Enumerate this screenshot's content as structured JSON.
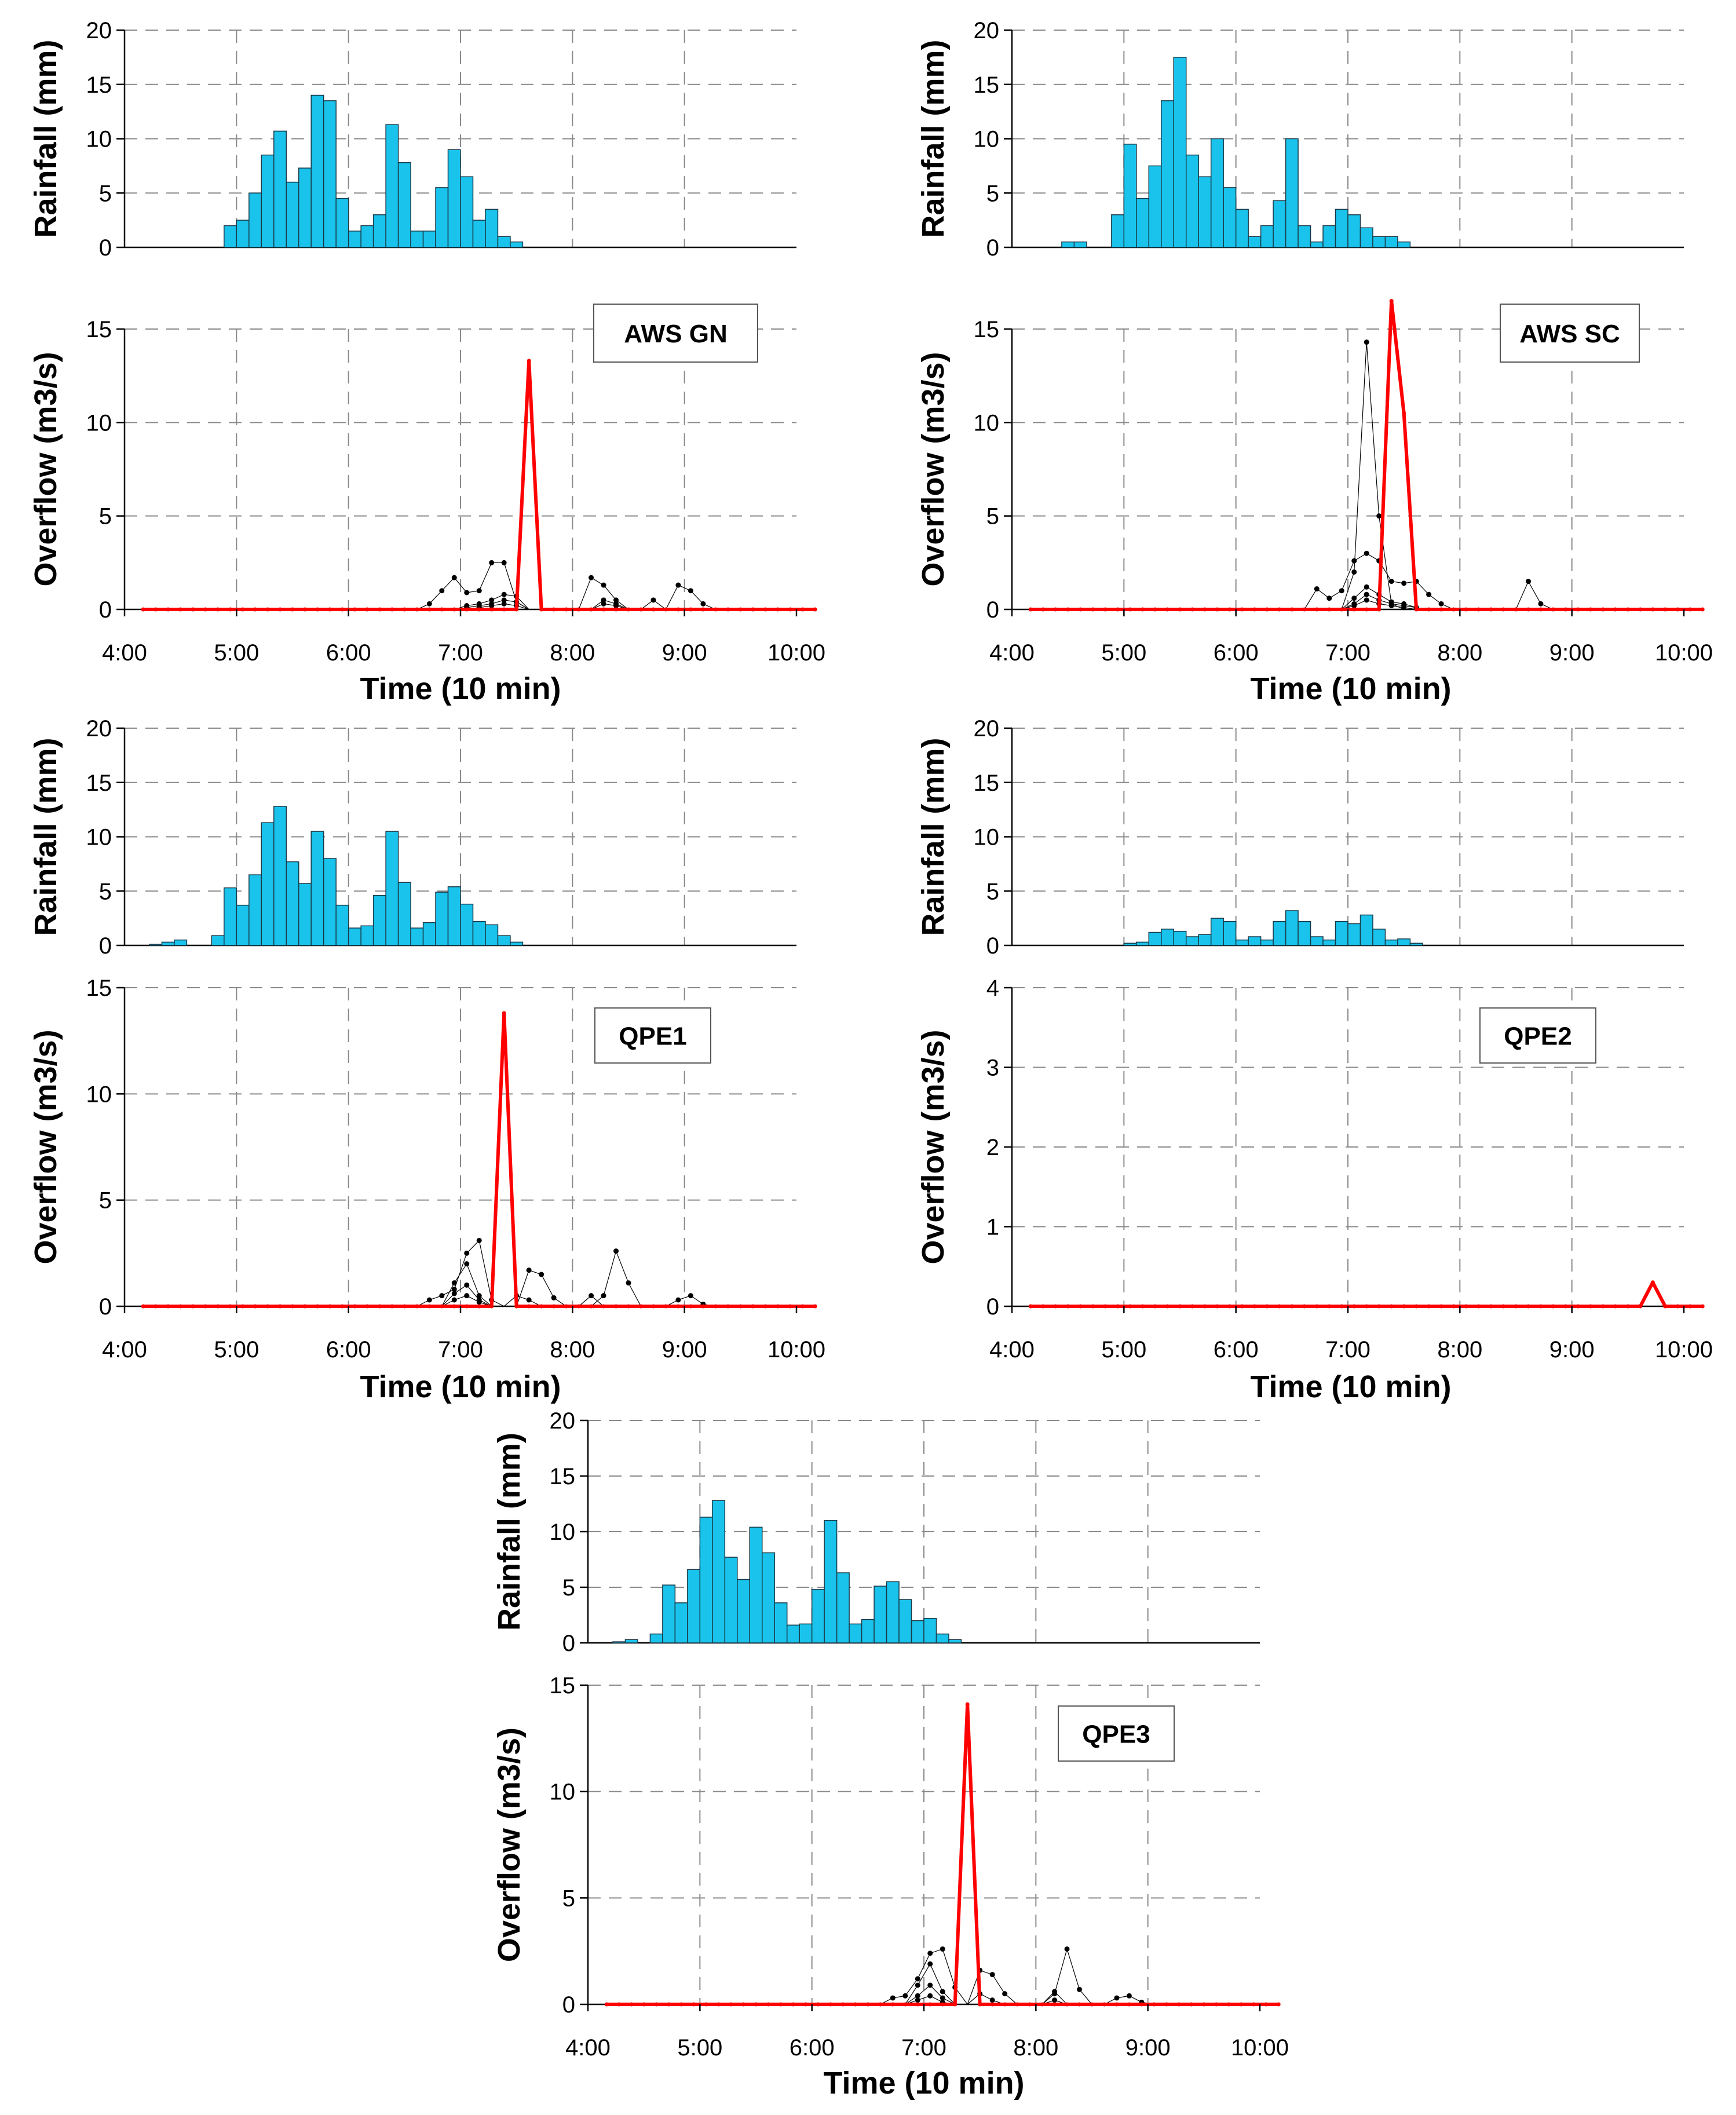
{
  "chart_data": [
    {
      "type": "bar+line",
      "label": "AWS GN",
      "x_ticks": [
        "4:00",
        "5:00",
        "6:00",
        "7:00",
        "8:00",
        "9:00",
        "10:00"
      ],
      "xlabel": "Time (10 min)",
      "rainfall": {
        "ylabel": "Rainfall (mm)",
        "ylim": [
          0,
          20
        ],
        "yticks": [
          "0",
          "5",
          "10",
          "15",
          "20"
        ],
        "start_step": 9,
        "values": [
          2,
          2.5,
          5,
          8.5,
          10.7,
          6,
          7.3,
          14,
          13.5,
          4.5,
          1.5,
          2,
          3,
          11.3,
          7.8,
          1.5,
          1.5,
          5.5,
          9,
          6.5,
          2.5,
          3.5,
          1,
          0.5
        ]
      },
      "overflow": {
        "ylabel": "Overflow (m3/s)",
        "ylim": [
          0,
          15
        ],
        "yticks": [
          "0",
          "5",
          "10",
          "15"
        ],
        "main": {
          "start_step": 0,
          "values": [
            0,
            0,
            0,
            0,
            0,
            0,
            0,
            0,
            0,
            0,
            0,
            0,
            0,
            0,
            0,
            0,
            0,
            0,
            0,
            0,
            0,
            0,
            0,
            0,
            0,
            0,
            0,
            0,
            0,
            0,
            0,
            13.3,
            0,
            0,
            0,
            0,
            0,
            0,
            0,
            0,
            0,
            0,
            0,
            0,
            0,
            0,
            0,
            0,
            0,
            0,
            0,
            0,
            0,
            0,
            0
          ]
        },
        "ensemble": [
          {
            "start_step": 24,
            "values": [
              0,
              0.3,
              1,
              1.7,
              0.9,
              1,
              2.5,
              2.5,
              0.4,
              0,
              0,
              0,
              0,
              0,
              1.7,
              1.3,
              0.5,
              0,
              0,
              0.5,
              0,
              1.3,
              1,
              0.3,
              0
            ]
          },
          {
            "start_step": 27,
            "values": [
              0,
              0.2,
              0.3,
              0.5,
              0.8,
              0.7,
              0,
              0,
              0,
              0,
              0,
              0,
              0.5,
              0.3,
              0
            ]
          },
          {
            "start_step": 27,
            "values": [
              0,
              0.1,
              0.2,
              0.3,
              0.5,
              0.4,
              0,
              0,
              0,
              0,
              0,
              0,
              0.3,
              0.2,
              0
            ]
          },
          {
            "start_step": 27,
            "values": [
              0,
              0,
              0.1,
              0.2,
              0.3,
              0.2,
              0,
              0,
              0,
              0,
              0,
              0,
              0,
              0,
              0
            ]
          }
        ]
      }
    },
    {
      "type": "bar+line",
      "label": "AWS SC",
      "x_ticks": [
        "4:00",
        "5:00",
        "6:00",
        "7:00",
        "8:00",
        "9:00",
        "10:00"
      ],
      "xlabel": "Time (10 min)",
      "rainfall": {
        "ylabel": "Rainfall (mm)",
        "ylim": [
          0,
          20
        ],
        "yticks": [
          "0",
          "5",
          "10",
          "15",
          "20"
        ],
        "start_step": 5,
        "values": [
          0.5,
          0.5,
          0,
          0,
          3,
          9.5,
          4.5,
          7.5,
          13.5,
          17.5,
          8.5,
          6.5,
          10,
          5.5,
          3.5,
          1,
          2,
          4.3,
          10,
          2,
          0.5,
          2,
          3.5,
          3,
          1.8,
          1,
          1,
          0.5
        ]
      },
      "overflow": {
        "ylabel": "Overflow (m3/s)",
        "ylim": [
          0,
          15
        ],
        "yticks": [
          "0",
          "5",
          "10",
          "15"
        ],
        "main": {
          "start_step": 0,
          "values": [
            0,
            0,
            0,
            0,
            0,
            0,
            0,
            0,
            0,
            0,
            0,
            0,
            0,
            0,
            0,
            0,
            0,
            0,
            0,
            0,
            0,
            0,
            0,
            0,
            0,
            0,
            0,
            0,
            0,
            16.5,
            10.5,
            0,
            0,
            0,
            0,
            0,
            0,
            0,
            0,
            0,
            0,
            0,
            0,
            0,
            0,
            0,
            0,
            0,
            0,
            0,
            0,
            0,
            0,
            0,
            0
          ]
        },
        "ensemble": [
          {
            "start_step": 23,
            "values": [
              0,
              0,
              1.1,
              0.6,
              1,
              2.6,
              3,
              2.6,
              1.5,
              1.4,
              1.5,
              0.8,
              0.3,
              0,
              0,
              0,
              0,
              0,
              0,
              1.5,
              0.3,
              0
            ]
          },
          {
            "start_step": 27,
            "values": [
              0,
              2,
              14.3,
              5,
              0.3,
              0
            ]
          },
          {
            "start_step": 27,
            "values": [
              0,
              0.6,
              1.2,
              0.8,
              0.4,
              0.3,
              0.1
            ]
          },
          {
            "start_step": 27,
            "values": [
              0,
              0.3,
              0.8,
              0.5,
              0.3,
              0.2,
              0.1
            ]
          },
          {
            "start_step": 27,
            "values": [
              0,
              0.2,
              0.5,
              0.3,
              0.2,
              0.1,
              0
            ]
          }
        ]
      }
    },
    {
      "type": "bar+line",
      "label": "QPE1",
      "x_ticks": [
        "4:00",
        "5:00",
        "6:00",
        "7:00",
        "8:00",
        "9:00",
        "10:00"
      ],
      "xlabel": "Time (10 min)",
      "rainfall": {
        "ylabel": "Rainfall (mm)",
        "ylim": [
          0,
          20
        ],
        "yticks": [
          "0",
          "5",
          "10",
          "15",
          "20"
        ],
        "start_step": 3,
        "values": [
          0.1,
          0.3,
          0.5,
          0,
          0,
          0.9,
          5.3,
          3.7,
          6.5,
          11.3,
          12.8,
          7.7,
          5.7,
          10.5,
          8,
          3.7,
          1.6,
          1.8,
          4.6,
          10.5,
          5.8,
          1.6,
          2.1,
          4.9,
          5.4,
          3.8,
          2.2,
          1.9,
          0.9,
          0.3
        ]
      },
      "overflow": {
        "ylabel": "Overflow (m3/s)",
        "ylim": [
          0,
          15
        ],
        "yticks": [
          "0",
          "5",
          "10",
          "15"
        ],
        "main": {
          "start_step": 0,
          "values": [
            0,
            0,
            0,
            0,
            0,
            0,
            0,
            0,
            0,
            0,
            0,
            0,
            0,
            0,
            0,
            0,
            0,
            0,
            0,
            0,
            0,
            0,
            0,
            0,
            0,
            0,
            0,
            0,
            0,
            13.8,
            0,
            0,
            0,
            0,
            0,
            0,
            0,
            0,
            0,
            0,
            0,
            0,
            0,
            0,
            0,
            0,
            0,
            0,
            0,
            0,
            0,
            0,
            0,
            0,
            0
          ]
        },
        "ensemble": [
          {
            "start_step": 24,
            "values": [
              0,
              0.3,
              0.5,
              0.8,
              2.5,
              3.1,
              0.3,
              0,
              0,
              1.7,
              1.5,
              0.4,
              0,
              0,
              0,
              0.5,
              2.6,
              1.1,
              0,
              0,
              0,
              0.3,
              0.5,
              0.1,
              0
            ]
          },
          {
            "start_step": 26,
            "values": [
              0,
              1.1,
              2,
              0.5,
              0,
              0,
              0.5,
              0.3,
              0,
              0,
              0,
              0,
              0.5,
              0
            ]
          },
          {
            "start_step": 26,
            "values": [
              0,
              0.6,
              1,
              0.3,
              0,
              0,
              0,
              0,
              0,
              0,
              0,
              0,
              0,
              0
            ]
          },
          {
            "start_step": 26,
            "values": [
              0,
              0.3,
              0.5,
              0.2,
              0
            ]
          }
        ]
      }
    },
    {
      "type": "bar+line",
      "label": "QPE2",
      "x_ticks": [
        "4:00",
        "5:00",
        "6:00",
        "7:00",
        "8:00",
        "9:00",
        "10:00"
      ],
      "xlabel": "Time (10 min)",
      "rainfall": {
        "ylabel": "Rainfall (mm)",
        "ylim": [
          0,
          20
        ],
        "yticks": [
          "0",
          "5",
          "10",
          "15",
          "20"
        ],
        "start_step": 10,
        "values": [
          0.2,
          0.3,
          1.2,
          1.5,
          1.3,
          0.8,
          1,
          2.5,
          2.2,
          0.5,
          0.8,
          0.5,
          2.2,
          3.2,
          2.2,
          0.8,
          0.5,
          2.2,
          2,
          2.8,
          1.5,
          0.5,
          0.6,
          0.2
        ]
      },
      "overflow": {
        "ylabel": "Overflow (m3/s)",
        "ylim": [
          0,
          4
        ],
        "yticks": [
          "0",
          "1",
          "2",
          "3",
          "4"
        ],
        "main": {
          "start_step": 0,
          "values": [
            0,
            0,
            0,
            0,
            0,
            0,
            0,
            0,
            0,
            0,
            0,
            0,
            0,
            0,
            0,
            0,
            0,
            0,
            0,
            0,
            0,
            0,
            0,
            0,
            0,
            0,
            0,
            0,
            0,
            0,
            0,
            0,
            0,
            0,
            0,
            0,
            0,
            0,
            0,
            0,
            0,
            0,
            0,
            0,
            0,
            0,
            0,
            0,
            0,
            0,
            0.3,
            0,
            0,
            0,
            0
          ]
        },
        "ensemble": []
      }
    },
    {
      "type": "bar+line",
      "label": "QPE3",
      "x_ticks": [
        "4:00",
        "5:00",
        "6:00",
        "7:00",
        "8:00",
        "9:00",
        "10:00"
      ],
      "xlabel": "Time (10 min)",
      "rainfall": {
        "ylabel": "Rainfall (mm)",
        "ylim": [
          0,
          20
        ],
        "yticks": [
          "0",
          "5",
          "10",
          "15",
          "20"
        ],
        "start_step": 3,
        "values": [
          0.1,
          0.3,
          0,
          0.8,
          5.2,
          3.6,
          6.6,
          11.3,
          12.8,
          7.7,
          5.7,
          10.4,
          8.1,
          3.6,
          1.6,
          1.7,
          4.8,
          11,
          6.3,
          1.7,
          2.1,
          5.1,
          5.5,
          3.9,
          2,
          2.2,
          0.8,
          0.3
        ]
      },
      "overflow": {
        "ylabel": "Overflow (m3/s)",
        "ylim": [
          0,
          15
        ],
        "yticks": [
          "0",
          "5",
          "10",
          "15"
        ],
        "main": {
          "start_step": 0,
          "values": [
            0,
            0,
            0,
            0,
            0,
            0,
            0,
            0,
            0,
            0,
            0,
            0,
            0,
            0,
            0,
            0,
            0,
            0,
            0,
            0,
            0,
            0,
            0,
            0,
            0,
            0,
            0,
            0,
            0,
            14.1,
            0,
            0,
            0,
            0,
            0,
            0,
            0,
            0,
            0,
            0,
            0,
            0,
            0,
            0,
            0,
            0,
            0,
            0,
            0,
            0,
            0,
            0,
            0,
            0,
            0
          ]
        },
        "ensemble": [
          {
            "start_step": 24,
            "values": [
              0,
              0.3,
              0.4,
              1.2,
              2.4,
              2.6,
              0.8,
              0,
              1.6,
              1.4,
              0.5,
              0,
              0,
              0,
              0.5,
              2.6,
              0.7,
              0,
              0,
              0.3,
              0.4,
              0.1,
              0
            ]
          },
          {
            "start_step": 26,
            "values": [
              0,
              0.9,
              1.9,
              0.6,
              0,
              0,
              0.5,
              0.2,
              0,
              0,
              0,
              0,
              0.6,
              0
            ]
          },
          {
            "start_step": 26,
            "values": [
              0,
              0.4,
              0.9,
              0.3,
              0,
              0,
              0,
              0,
              0,
              0,
              0,
              0,
              0.2,
              0
            ]
          },
          {
            "start_step": 26,
            "values": [
              0,
              0.2,
              0.4,
              0.1,
              0
            ]
          }
        ]
      }
    }
  ]
}
